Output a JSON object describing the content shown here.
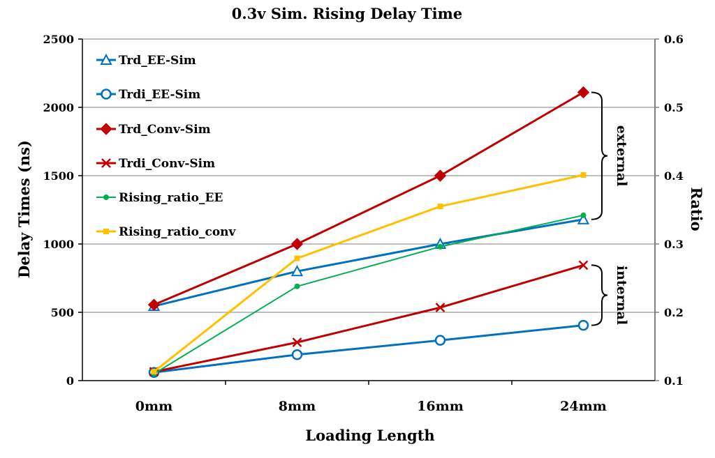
{
  "chart_data": {
    "type": "line",
    "title": "0.3v Sim. Rising Delay Time",
    "xlabel": "Loading Length",
    "ylabel": "Delay Times (ns)",
    "y2label": "Ratio",
    "categories": [
      "0mm",
      "8mm",
      "16mm",
      "24mm"
    ],
    "ylim": [
      0,
      2500
    ],
    "yticks": [
      0,
      500,
      1000,
      1500,
      2000,
      2500
    ],
    "y2lim": [
      0.1,
      0.6
    ],
    "y2ticks": [
      "0.1",
      "0.2",
      "0.3",
      "0.4",
      "0.5",
      "0.6"
    ],
    "grid": true,
    "legend_position": "top-left",
    "series": [
      {
        "name": "Trd_EE-Sim",
        "axis": "left",
        "marker": "triangle",
        "color": "#0070C0",
        "values": [
          545,
          800,
          1000,
          1180
        ]
      },
      {
        "name": "Trdi_EE-Sim",
        "axis": "left",
        "marker": "circle",
        "color": "#0070C0",
        "values": [
          60,
          190,
          295,
          405
        ]
      },
      {
        "name": "Trd_Conv-Sim",
        "axis": "left",
        "marker": "diamond",
        "color": "#C00000",
        "values": [
          555,
          1000,
          1500,
          2110
        ]
      },
      {
        "name": "Trdi_Conv-Sim",
        "axis": "left",
        "marker": "x",
        "color": "#C00000",
        "values": [
          65,
          280,
          535,
          845
        ]
      },
      {
        "name": "Rising_ratio_EE",
        "axis": "right",
        "marker": "dot",
        "color": "#00B050",
        "values": [
          0.11,
          0.238,
          0.296,
          0.342
        ]
      },
      {
        "name": "Rising_ratio_conv",
        "axis": "right",
        "marker": "square",
        "color": "#FFC000",
        "values": [
          0.113,
          0.279,
          0.355,
          0.401
        ]
      }
    ],
    "annotations": [
      {
        "text": "external",
        "bracket_from": 2110,
        "bracket_to": 1180
      },
      {
        "text": "internal",
        "bracket_from": 845,
        "bracket_to": 405
      }
    ]
  }
}
